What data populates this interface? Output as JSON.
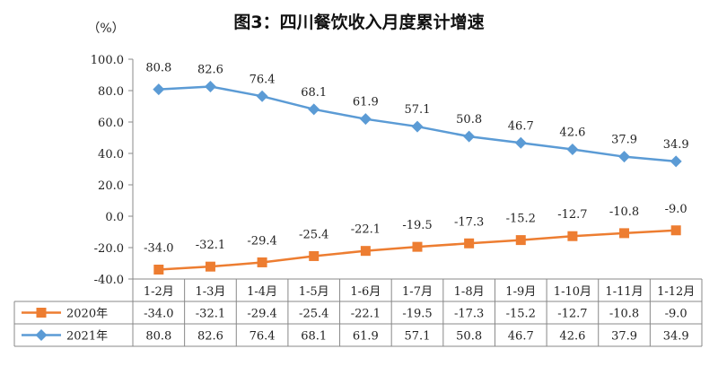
{
  "chart_data": {
    "type": "line",
    "title": "图3：四川餐饮收入月度累计增速",
    "ylabel": "（%）",
    "xlabel": "",
    "ylim": [
      -40,
      100
    ],
    "yticks": [
      -40,
      -20,
      0,
      20,
      40,
      60,
      80,
      100
    ],
    "ytick_labels": [
      "-40.0",
      "-20.0",
      "0.0",
      "20.0",
      "40.0",
      "60.0",
      "80.0",
      "100.0"
    ],
    "categories": [
      "1-2月",
      "1-3月",
      "1-4月",
      "1-5月",
      "1-6月",
      "1-7月",
      "1-8月",
      "1-9月",
      "1-10月",
      "1-11月",
      "1-12月"
    ],
    "series": [
      {
        "name": "2020年",
        "color": "#ED7D31",
        "marker": "square",
        "values": [
          -34.0,
          -32.1,
          -29.4,
          -25.4,
          -22.1,
          -19.5,
          -17.3,
          -15.2,
          -12.7,
          -10.8,
          -9.0
        ],
        "labels": [
          "-34.0",
          "-32.1",
          "-29.4",
          "-25.4",
          "-22.1",
          "-19.5",
          "-17.3",
          "-15.2",
          "-12.7",
          "-10.8",
          "-9.0"
        ]
      },
      {
        "name": "2021年",
        "color": "#5B9BD5",
        "marker": "diamond",
        "values": [
          80.8,
          82.6,
          76.4,
          68.1,
          61.9,
          57.1,
          50.8,
          46.7,
          42.6,
          37.9,
          34.9
        ],
        "labels": [
          "80.8",
          "82.6",
          "76.4",
          "68.1",
          "61.9",
          "57.1",
          "50.8",
          "46.7",
          "42.6",
          "37.9",
          "34.9"
        ]
      }
    ],
    "data_table": true,
    "grid": false
  }
}
